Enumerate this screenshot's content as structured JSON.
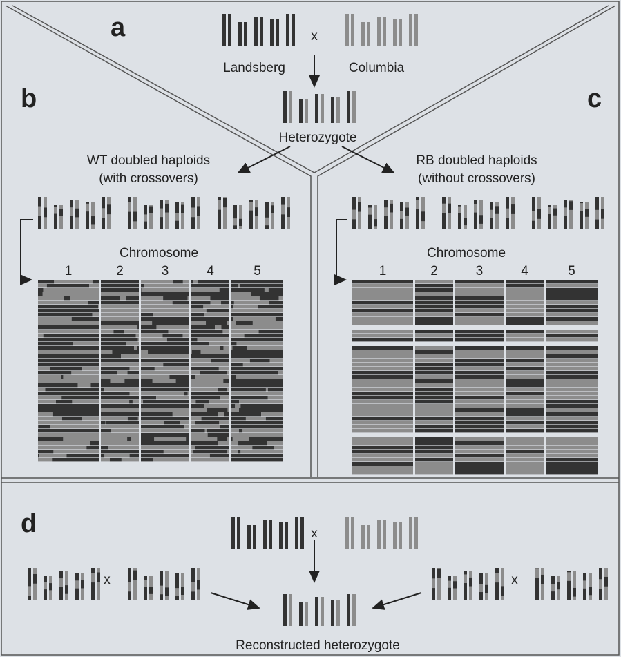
{
  "panels": {
    "a": {
      "label": "a",
      "parent1": "Landsberg",
      "cross": "x",
      "parent2": "Columbia",
      "offspring": "Heterozygote"
    },
    "b": {
      "label": "b",
      "title_lines": [
        "WT doubled haploids",
        "(with crossovers)"
      ],
      "axis_label": "Chromosome",
      "chromosomes": [
        "1",
        "2",
        "3",
        "4",
        "5"
      ]
    },
    "c": {
      "label": "c",
      "title_lines": [
        "RB doubled haploids",
        "(without crossovers)"
      ],
      "axis_label": "Chromosome",
      "chromosomes": [
        "1",
        "2",
        "3",
        "4",
        "5"
      ]
    },
    "d": {
      "label": "d",
      "crosses": [
        "x",
        "x",
        "x"
      ],
      "result": "Reconstructed heterozygote"
    }
  }
}
